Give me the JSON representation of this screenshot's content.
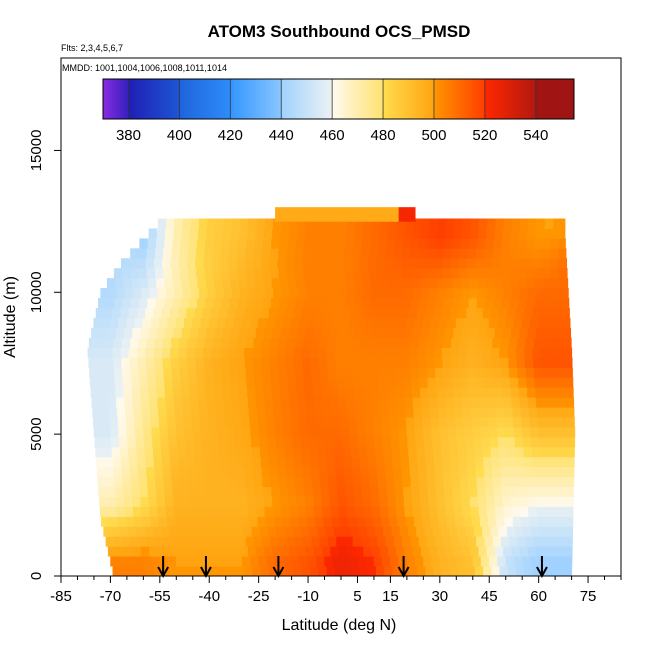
{
  "chart_data": {
    "type": "heatmap",
    "title": "ATOM3 Southbound OCS_PMSD",
    "flights_label": "Flts: 2,3,4,5,6,7",
    "dates_label": "MMDD: 1001,1004,1006,1008,1011,1014",
    "xlabel": "Latitude (deg N)",
    "ylabel": "Altitude (m)",
    "xlim": [
      -85,
      85
    ],
    "ylim": [
      0,
      17500
    ],
    "x_major_ticks": [
      -85,
      -70,
      -55,
      -40,
      -25,
      -10,
      5,
      15,
      30,
      45,
      60,
      75
    ],
    "x_minor_ticks": [
      -80,
      -75,
      -65,
      -60,
      -50,
      -45,
      -35,
      -30,
      -20,
      -15,
      -5,
      0,
      10,
      20,
      25,
      35,
      40,
      50,
      55,
      65,
      70,
      80,
      85
    ],
    "x_tick_labels": [
      "-85",
      "-70",
      "-55",
      "-40",
      "-25",
      "-10",
      "5",
      "15",
      "30",
      "45",
      "60",
      "75"
    ],
    "y_ticks": [
      0,
      5000,
      10000,
      15000
    ],
    "y_tick_labels": [
      "0",
      "5000",
      "10000",
      "15000"
    ],
    "colorbar": {
      "min": 370,
      "max": 555,
      "ticks": [
        380,
        400,
        420,
        440,
        460,
        480,
        500,
        520,
        540
      ],
      "tick_labels": [
        "380",
        "400",
        "420",
        "440",
        "460",
        "480",
        "500",
        "520",
        "540"
      ],
      "bin_edges": [
        370,
        380,
        400,
        420,
        440,
        460,
        480,
        500,
        520,
        540,
        555
      ],
      "colors": [
        "#8a2be2",
        "#1e1eb4",
        "#1e64dc",
        "#3296ff",
        "#a0d2ff",
        "#fffaf0",
        "#ffdc50",
        "#ff9600",
        "#ff2800",
        "#a01414"
      ]
    },
    "vertical_profile_markers_lat": [
      -54,
      -41,
      -19,
      19,
      61
    ],
    "series": [
      {
        "name": "OCS_PMSD",
        "latitude_bins": [
          -70,
          -60,
          -50,
          -40,
          -30,
          -20,
          -10,
          0,
          10,
          20,
          30,
          40,
          50,
          60,
          70
        ],
        "altitude_bins_m": [
          500,
          2500,
          5000,
          7500,
          10000,
          12000
        ],
        "values": [
          [
            505,
            505,
            500,
            500,
            500,
            510,
            515,
            525,
            520,
            505,
            495,
            490,
            450,
            440,
            440
          ],
          [
            470,
            480,
            495,
            495,
            495,
            500,
            505,
            515,
            510,
            500,
            490,
            480,
            465,
            460,
            460
          ],
          [
            455,
            475,
            490,
            495,
            498,
            505,
            510,
            510,
            505,
            500,
            490,
            485,
            480,
            490,
            490
          ],
          [
            455,
            470,
            485,
            495,
            500,
            505,
            510,
            505,
            505,
            505,
            500,
            495,
            500,
            515,
            515
          ],
          [
            445,
            455,
            470,
            485,
            495,
            500,
            505,
            505,
            510,
            510,
            505,
            500,
            505,
            510,
            510
          ],
          [
            0,
            440,
            470,
            485,
            490,
            500,
            505,
            505,
            510,
            515,
            520,
            515,
            505,
            500,
            0
          ]
        ]
      }
    ]
  }
}
